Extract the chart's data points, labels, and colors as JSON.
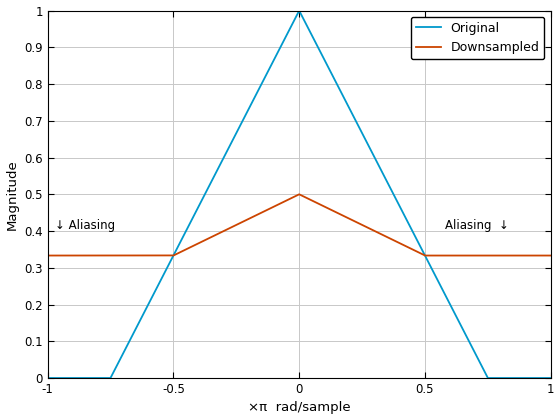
{
  "title": "",
  "xlabel": "×π  rad/sample",
  "ylabel": "Magnitude",
  "xlim": [
    -1,
    1
  ],
  "ylim": [
    0,
    1
  ],
  "xticks": [
    -1,
    -0.5,
    0,
    0.5,
    1
  ],
  "yticks": [
    0,
    0.1,
    0.2,
    0.3,
    0.4,
    0.5,
    0.6,
    0.7,
    0.8,
    0.9,
    1.0
  ],
  "original_color": "#0099CC",
  "downsampled_color": "#CC4400",
  "legend_labels": [
    "Original",
    "Downsampled"
  ],
  "background_color": "#ffffff",
  "grid_color": "#c8c8c8",
  "triangle_halfwidth": 0.75
}
